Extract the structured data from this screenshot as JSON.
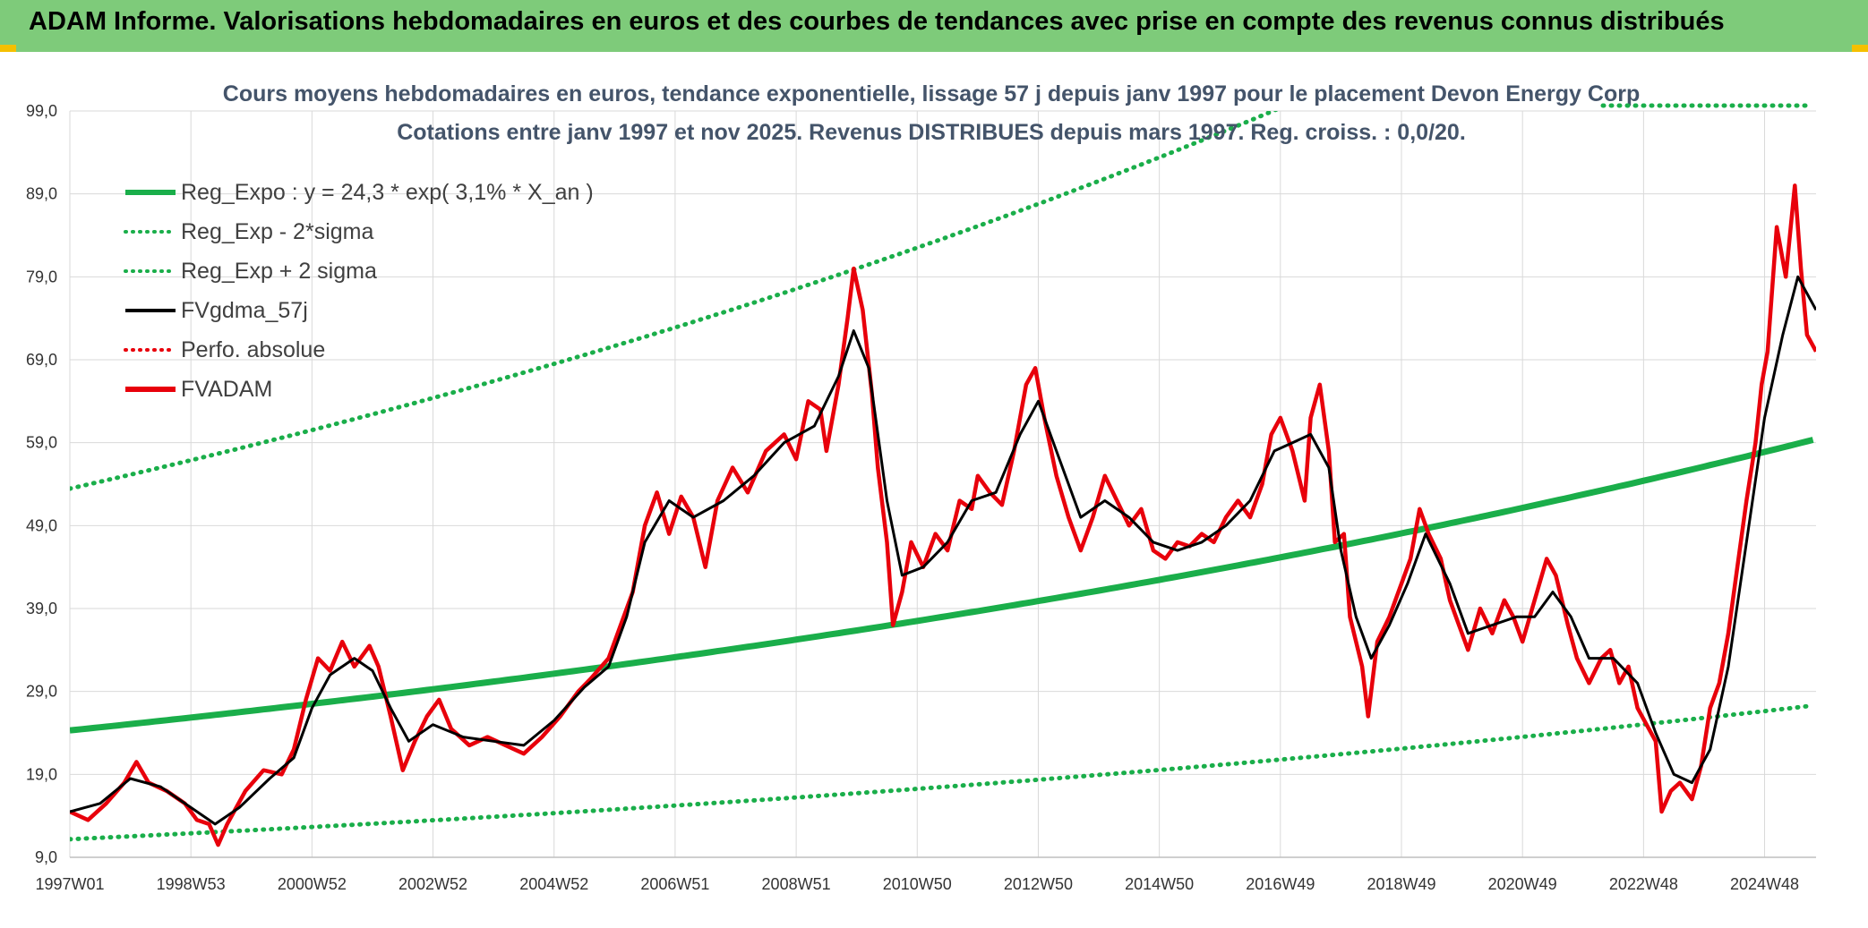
{
  "header": {
    "title": "ADAM Informe. Valorisations hebdomadaires en euros et des courbes de tendances avec prise en compte des revenus connus distribués"
  },
  "colors": {
    "banner": "#7ecb7a",
    "reg": "#1aae4a",
    "adam": "#e8000b",
    "gdma": "#000000",
    "perf": "#e8000b",
    "grid": "#d9d9d9"
  },
  "chart_data": {
    "type": "line",
    "subtitle_line1": "Cours moyens hebdomadaires en euros, tendance exponentielle, lissage 57 j depuis janv 1997 pour le placement Devon Energy Corp",
    "subtitle_line2": "Cotations entre janv 1997 et nov 2025. Revenus DISTRIBUES depuis mars 1997. Reg. croiss. : 0,0/20.",
    "xlim": [
      1997.0,
      2025.85
    ],
    "ylim": [
      9.0,
      99.0
    ],
    "y_ticks": [
      "9,0",
      "19,0",
      "29,0",
      "39,0",
      "49,0",
      "59,0",
      "69,0",
      "79,0",
      "89,0",
      "99,0"
    ],
    "x_ticks": [
      {
        "label": "1997W01",
        "x": 1997.0
      },
      {
        "label": "1998W53",
        "x": 1999.0
      },
      {
        "label": "2000W52",
        "x": 2001.0
      },
      {
        "label": "2002W52",
        "x": 2003.0
      },
      {
        "label": "2004W52",
        "x": 2005.0
      },
      {
        "label": "2006W51",
        "x": 2007.0
      },
      {
        "label": "2008W51",
        "x": 2009.0
      },
      {
        "label": "2010W50",
        "x": 2011.0
      },
      {
        "label": "2012W50",
        "x": 2013.0
      },
      {
        "label": "2014W50",
        "x": 2015.0
      },
      {
        "label": "2016W49",
        "x": 2017.0
      },
      {
        "label": "2018W49",
        "x": 2019.0
      },
      {
        "label": "2020W49",
        "x": 2021.0
      },
      {
        "label": "2022W48",
        "x": 2023.0
      },
      {
        "label": "2024W48",
        "x": 2025.0
      }
    ],
    "legend": [
      {
        "name": "Reg_Expo : y = 24,3 * exp( 3,1% *  X_an )",
        "style": "solid-thick",
        "color": "#1aae4a"
      },
      {
        "name": "Reg_Exp - 2*sigma",
        "style": "dotted",
        "color": "#1aae4a"
      },
      {
        "name": "Reg_Exp + 2 sigma",
        "style": "dotted",
        "color": "#1aae4a"
      },
      {
        "name": "FVgdma_57j",
        "style": "solid",
        "color": "#000000"
      },
      {
        "name": "Perfo. absolue",
        "style": "dotted",
        "color": "#e8000b"
      },
      {
        "name": "FVADAM",
        "style": "solid-thick",
        "color": "#e8000b"
      }
    ],
    "regression": {
      "a": 24.3,
      "r": 0.031,
      "lower_factor": 0.46,
      "upper_factor": 2.2
    },
    "series": [
      {
        "name": "FVADAM",
        "points": [
          [
            1997.0,
            14.5
          ],
          [
            1997.3,
            13.5
          ],
          [
            1997.6,
            15.5
          ],
          [
            1997.9,
            18.0
          ],
          [
            1998.1,
            20.5
          ],
          [
            1998.3,
            18.0
          ],
          [
            1998.6,
            17.0
          ],
          [
            1998.9,
            15.5
          ],
          [
            1999.1,
            13.5
          ],
          [
            1999.3,
            13.0
          ],
          [
            1999.45,
            10.5
          ],
          [
            1999.6,
            13.0
          ],
          [
            1999.9,
            17.0
          ],
          [
            2000.2,
            19.5
          ],
          [
            2000.5,
            19.0
          ],
          [
            2000.7,
            22.0
          ],
          [
            2000.9,
            28.0
          ],
          [
            2001.1,
            33.0
          ],
          [
            2001.3,
            31.5
          ],
          [
            2001.5,
            35.0
          ],
          [
            2001.7,
            32.0
          ],
          [
            2001.95,
            34.5
          ],
          [
            2002.1,
            32.0
          ],
          [
            2002.3,
            26.0
          ],
          [
            2002.5,
            19.5
          ],
          [
            2002.7,
            23.0
          ],
          [
            2002.9,
            26.0
          ],
          [
            2003.1,
            28.0
          ],
          [
            2003.3,
            24.5
          ],
          [
            2003.6,
            22.5
          ],
          [
            2003.9,
            23.5
          ],
          [
            2004.2,
            22.5
          ],
          [
            2004.5,
            21.5
          ],
          [
            2004.8,
            23.5
          ],
          [
            2005.1,
            26.0
          ],
          [
            2005.4,
            29.0
          ],
          [
            2005.6,
            30.5
          ],
          [
            2005.9,
            33.0
          ],
          [
            2006.1,
            37.0
          ],
          [
            2006.3,
            41.0
          ],
          [
            2006.5,
            49.0
          ],
          [
            2006.7,
            53.0
          ],
          [
            2006.9,
            48.0
          ],
          [
            2007.1,
            52.5
          ],
          [
            2007.3,
            50.0
          ],
          [
            2007.5,
            44.0
          ],
          [
            2007.7,
            52.0
          ],
          [
            2007.95,
            56.0
          ],
          [
            2008.2,
            53.0
          ],
          [
            2008.5,
            58.0
          ],
          [
            2008.8,
            60.0
          ],
          [
            2009.0,
            57.0
          ],
          [
            2009.2,
            64.0
          ],
          [
            2009.4,
            63.0
          ],
          [
            2009.5,
            58.0
          ],
          [
            2009.7,
            66.0
          ],
          [
            2009.85,
            74.0
          ],
          [
            2009.95,
            80.0
          ],
          [
            2010.1,
            75.0
          ],
          [
            2010.25,
            65.0
          ],
          [
            2010.35,
            56.0
          ],
          [
            2010.5,
            47.0
          ],
          [
            2010.6,
            37.0
          ],
          [
            2010.75,
            41.0
          ],
          [
            2010.9,
            47.0
          ],
          [
            2011.1,
            44.0
          ],
          [
            2011.3,
            48.0
          ],
          [
            2011.5,
            46.0
          ],
          [
            2011.7,
            52.0
          ],
          [
            2011.9,
            51.0
          ],
          [
            2012.0,
            55.0
          ],
          [
            2012.2,
            53.0
          ],
          [
            2012.4,
            51.5
          ],
          [
            2012.6,
            58.0
          ],
          [
            2012.8,
            66.0
          ],
          [
            2012.95,
            68.0
          ],
          [
            2013.1,
            62.0
          ],
          [
            2013.3,
            55.0
          ],
          [
            2013.5,
            50.0
          ],
          [
            2013.7,
            46.0
          ],
          [
            2013.9,
            50.0
          ],
          [
            2014.1,
            55.0
          ],
          [
            2014.3,
            52.0
          ],
          [
            2014.5,
            49.0
          ],
          [
            2014.7,
            51.0
          ],
          [
            2014.9,
            46.0
          ],
          [
            2015.1,
            45.0
          ],
          [
            2015.3,
            47.0
          ],
          [
            2015.5,
            46.5
          ],
          [
            2015.7,
            48.0
          ],
          [
            2015.9,
            47.0
          ],
          [
            2016.1,
            50.0
          ],
          [
            2016.3,
            52.0
          ],
          [
            2016.5,
            50.0
          ],
          [
            2016.7,
            54.0
          ],
          [
            2016.85,
            60.0
          ],
          [
            2017.0,
            62.0
          ],
          [
            2017.2,
            58.0
          ],
          [
            2017.4,
            52.0
          ],
          [
            2017.5,
            62.0
          ],
          [
            2017.65,
            66.0
          ],
          [
            2017.8,
            58.0
          ],
          [
            2017.9,
            47.0
          ],
          [
            2018.05,
            48.0
          ],
          [
            2018.15,
            38.0
          ],
          [
            2018.35,
            32.0
          ],
          [
            2018.45,
            26.0
          ],
          [
            2018.6,
            35.0
          ],
          [
            2018.8,
            38.0
          ],
          [
            2019.0,
            42.0
          ],
          [
            2019.15,
            45.0
          ],
          [
            2019.3,
            51.0
          ],
          [
            2019.45,
            48.0
          ],
          [
            2019.65,
            45.0
          ],
          [
            2019.8,
            40.0
          ],
          [
            2019.95,
            37.0
          ],
          [
            2020.1,
            34.0
          ],
          [
            2020.3,
            39.0
          ],
          [
            2020.5,
            36.0
          ],
          [
            2020.7,
            40.0
          ],
          [
            2020.85,
            38.0
          ],
          [
            2021.0,
            35.0
          ],
          [
            2021.2,
            40.0
          ],
          [
            2021.4,
            45.0
          ],
          [
            2021.55,
            43.0
          ],
          [
            2021.75,
            37.0
          ],
          [
            2021.9,
            33.0
          ],
          [
            2022.1,
            30.0
          ],
          [
            2022.3,
            33.0
          ],
          [
            2022.45,
            34.0
          ],
          [
            2022.6,
            30.0
          ],
          [
            2022.75,
            32.0
          ],
          [
            2022.9,
            27.0
          ],
          [
            2023.05,
            25.0
          ],
          [
            2023.2,
            23.0
          ],
          [
            2023.3,
            14.5
          ],
          [
            2023.45,
            17.0
          ],
          [
            2023.6,
            18.0
          ],
          [
            2023.8,
            16.0
          ],
          [
            2023.95,
            20.0
          ],
          [
            2024.1,
            27.0
          ],
          [
            2024.25,
            30.0
          ],
          [
            2024.4,
            36.0
          ],
          [
            2024.55,
            44.0
          ],
          [
            2024.7,
            52.0
          ],
          [
            2024.85,
            59.0
          ],
          [
            2024.95,
            66.0
          ],
          [
            2025.05,
            70.0
          ],
          [
            2025.2,
            85.0
          ],
          [
            2025.35,
            79.0
          ],
          [
            2025.5,
            90.0
          ],
          [
            2025.6,
            80.0
          ],
          [
            2025.7,
            72.0
          ],
          [
            2025.85,
            70.0
          ]
        ]
      },
      {
        "name": "FVgdma_57j",
        "points": [
          [
            1997.0,
            14.5
          ],
          [
            1997.5,
            15.5
          ],
          [
            1998.0,
            18.5
          ],
          [
            1998.5,
            17.5
          ],
          [
            1999.0,
            15.0
          ],
          [
            1999.4,
            13.0
          ],
          [
            1999.8,
            15.0
          ],
          [
            2000.3,
            18.5
          ],
          [
            2000.7,
            21.0
          ],
          [
            2001.0,
            27.0
          ],
          [
            2001.3,
            31.0
          ],
          [
            2001.7,
            33.0
          ],
          [
            2002.0,
            31.5
          ],
          [
            2002.3,
            27.0
          ],
          [
            2002.6,
            23.0
          ],
          [
            2003.0,
            25.0
          ],
          [
            2003.5,
            23.5
          ],
          [
            2004.0,
            23.0
          ],
          [
            2004.5,
            22.5
          ],
          [
            2005.0,
            25.5
          ],
          [
            2005.5,
            29.5
          ],
          [
            2005.9,
            32.0
          ],
          [
            2006.2,
            38.0
          ],
          [
            2006.5,
            47.0
          ],
          [
            2006.9,
            52.0
          ],
          [
            2007.3,
            50.0
          ],
          [
            2007.8,
            52.0
          ],
          [
            2008.3,
            55.0
          ],
          [
            2008.8,
            59.0
          ],
          [
            2009.3,
            61.0
          ],
          [
            2009.7,
            67.0
          ],
          [
            2009.95,
            72.5
          ],
          [
            2010.2,
            68.0
          ],
          [
            2010.5,
            52.0
          ],
          [
            2010.75,
            43.0
          ],
          [
            2011.1,
            44.0
          ],
          [
            2011.5,
            47.0
          ],
          [
            2011.9,
            52.0
          ],
          [
            2012.3,
            53.0
          ],
          [
            2012.7,
            60.0
          ],
          [
            2013.0,
            64.0
          ],
          [
            2013.3,
            58.0
          ],
          [
            2013.7,
            50.0
          ],
          [
            2014.1,
            52.0
          ],
          [
            2014.5,
            50.0
          ],
          [
            2014.9,
            47.0
          ],
          [
            2015.3,
            46.0
          ],
          [
            2015.7,
            47.0
          ],
          [
            2016.1,
            49.0
          ],
          [
            2016.5,
            52.0
          ],
          [
            2016.9,
            58.0
          ],
          [
            2017.2,
            59.0
          ],
          [
            2017.5,
            60.0
          ],
          [
            2017.8,
            56.0
          ],
          [
            2018.0,
            46.0
          ],
          [
            2018.25,
            38.0
          ],
          [
            2018.5,
            33.0
          ],
          [
            2018.8,
            37.0
          ],
          [
            2019.1,
            42.0
          ],
          [
            2019.4,
            48.0
          ],
          [
            2019.8,
            42.0
          ],
          [
            2020.1,
            36.0
          ],
          [
            2020.5,
            37.0
          ],
          [
            2020.9,
            38.0
          ],
          [
            2021.2,
            38.0
          ],
          [
            2021.5,
            41.0
          ],
          [
            2021.8,
            38.0
          ],
          [
            2022.1,
            33.0
          ],
          [
            2022.5,
            33.0
          ],
          [
            2022.9,
            30.0
          ],
          [
            2023.2,
            24.0
          ],
          [
            2023.5,
            19.0
          ],
          [
            2023.8,
            18.0
          ],
          [
            2024.1,
            22.0
          ],
          [
            2024.4,
            32.0
          ],
          [
            2024.7,
            47.0
          ],
          [
            2025.0,
            62.0
          ],
          [
            2025.3,
            72.0
          ],
          [
            2025.55,
            79.0
          ],
          [
            2025.85,
            75.0
          ]
        ]
      }
    ]
  }
}
